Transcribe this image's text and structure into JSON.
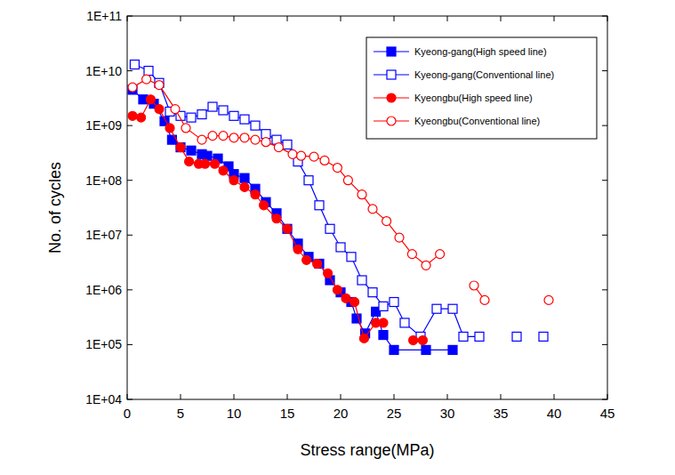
{
  "chart_data": {
    "type": "line",
    "x_label": "Stress range(MPa)",
    "y_label": "No. of cycles",
    "log": "y",
    "grid": false,
    "legend": "top-right",
    "xlim": [
      0,
      45
    ],
    "xticks": [
      0,
      5,
      10,
      15,
      20,
      25,
      30,
      35,
      40,
      45
    ],
    "ylim": [
      10000,
      100000000000
    ],
    "yticks": [
      {
        "value": 10000,
        "label": "1E+04"
      },
      {
        "value": 100000,
        "label": "1E+05"
      },
      {
        "value": 1000000,
        "label": "1E+06"
      },
      {
        "value": 10000000,
        "label": "1E+07"
      },
      {
        "value": 100000000,
        "label": "1E+08"
      },
      {
        "value": 1000000000,
        "label": "1E+09"
      },
      {
        "value": 10000000000,
        "label": "1E+10"
      },
      {
        "value": 100000000000,
        "label": "1E+11"
      }
    ],
    "series": [
      {
        "name": "Kyeong-gang(High speed line)",
        "color": "#0000ff",
        "marker": "filled-square",
        "line_style": "solid",
        "x": [
          0.5,
          1.5,
          2.5,
          3.5,
          4.2,
          5,
          6,
          7,
          7.5,
          8.5,
          9.5,
          10,
          11,
          12,
          13,
          14,
          15,
          16,
          17,
          18,
          19,
          20,
          21,
          21.5,
          22.3,
          23.3,
          24,
          25,
          28,
          30.5
        ],
        "values": [
          4500000000,
          3000000000,
          2500000000,
          1200000000,
          550000000,
          400000000,
          350000000,
          300000000,
          280000000,
          250000000,
          180000000,
          130000000,
          110000000,
          70000000,
          40000000,
          25000000,
          13000000,
          7000000,
          4000000,
          3000000,
          1500000,
          900000,
          600000,
          300000,
          160000,
          400000,
          150000,
          80000,
          80000,
          80000
        ]
      },
      {
        "name": "Kyeong-gang(Conventional line)",
        "color": "#0000ff",
        "marker": "open-square",
        "line_style": "solid",
        "x": [
          0.7,
          2,
          3,
          4,
          5,
          6,
          7,
          8,
          9,
          10,
          11,
          12,
          13,
          14,
          15,
          16,
          17,
          18,
          19,
          20,
          21,
          22,
          23,
          24,
          25,
          26,
          27.5,
          29,
          30.5,
          31.5,
          33,
          34.5,
          36.5,
          38,
          39
        ],
        "values": [
          13000000000,
          10000000000,
          6000000000,
          1800000000,
          1500000000,
          1400000000,
          1600000000,
          2200000000,
          1900000000,
          1500000000,
          1300000000,
          1000000000,
          700000000,
          550000000,
          450000000,
          220000000,
          100000000,
          35000000,
          13000000,
          6000000,
          4000000,
          1500000,
          900000,
          500000,
          600000,
          250000,
          140000,
          450000,
          450000,
          140000,
          140000,
          null,
          140000,
          null,
          140000
        ]
      },
      {
        "name": "Kyeongbu(High speed line)",
        "color": "#ff0000",
        "marker": "filled-circle",
        "line_style": "solid",
        "x": [
          0.5,
          1.3,
          2.2,
          3,
          4,
          5,
          5.8,
          6.7,
          7.3,
          8.2,
          9,
          10,
          11,
          12,
          12.8,
          14,
          15,
          16,
          16.8,
          17.8,
          18.8,
          19.7,
          20.5,
          21.3,
          22.2,
          23.3,
          24,
          25.5,
          26.8,
          27.7
        ],
        "values": [
          1500000000,
          1400000000,
          3000000000,
          2000000000,
          900000000,
          400000000,
          220000000,
          200000000,
          200000000,
          200000000,
          150000000,
          100000000,
          75000000,
          55000000,
          35000000,
          20000000,
          13000000,
          5500000,
          3500000,
          3000000,
          2000000,
          1000000,
          700000,
          600000,
          130000,
          250000,
          250000,
          null,
          120000,
          120000
        ]
      },
      {
        "name": "Kyeongbu(Conventional line)",
        "color": "#ff0000",
        "marker": "open-circle",
        "line_style": "solid",
        "x": [
          0.5,
          1.8,
          3,
          4.5,
          5.5,
          7,
          8,
          9,
          10,
          11,
          12,
          13,
          14.2,
          15.5,
          16.3,
          17.5,
          18.5,
          19.7,
          20.7,
          22,
          23,
          24.3,
          25.5,
          26.7,
          28,
          29.3,
          31,
          32.5,
          33.5,
          36,
          39.5
        ],
        "values": [
          5000000000,
          7000000000,
          5500000000,
          2000000000,
          900000000,
          550000000,
          650000000,
          650000000,
          600000000,
          600000000,
          550000000,
          500000000,
          400000000,
          300000000,
          280000000,
          270000000,
          230000000,
          170000000,
          100000000,
          55000000,
          30000000,
          18000000,
          9000000,
          4500000,
          2800000,
          4500000,
          null,
          1200000,
          650000,
          null,
          650000
        ]
      }
    ]
  }
}
